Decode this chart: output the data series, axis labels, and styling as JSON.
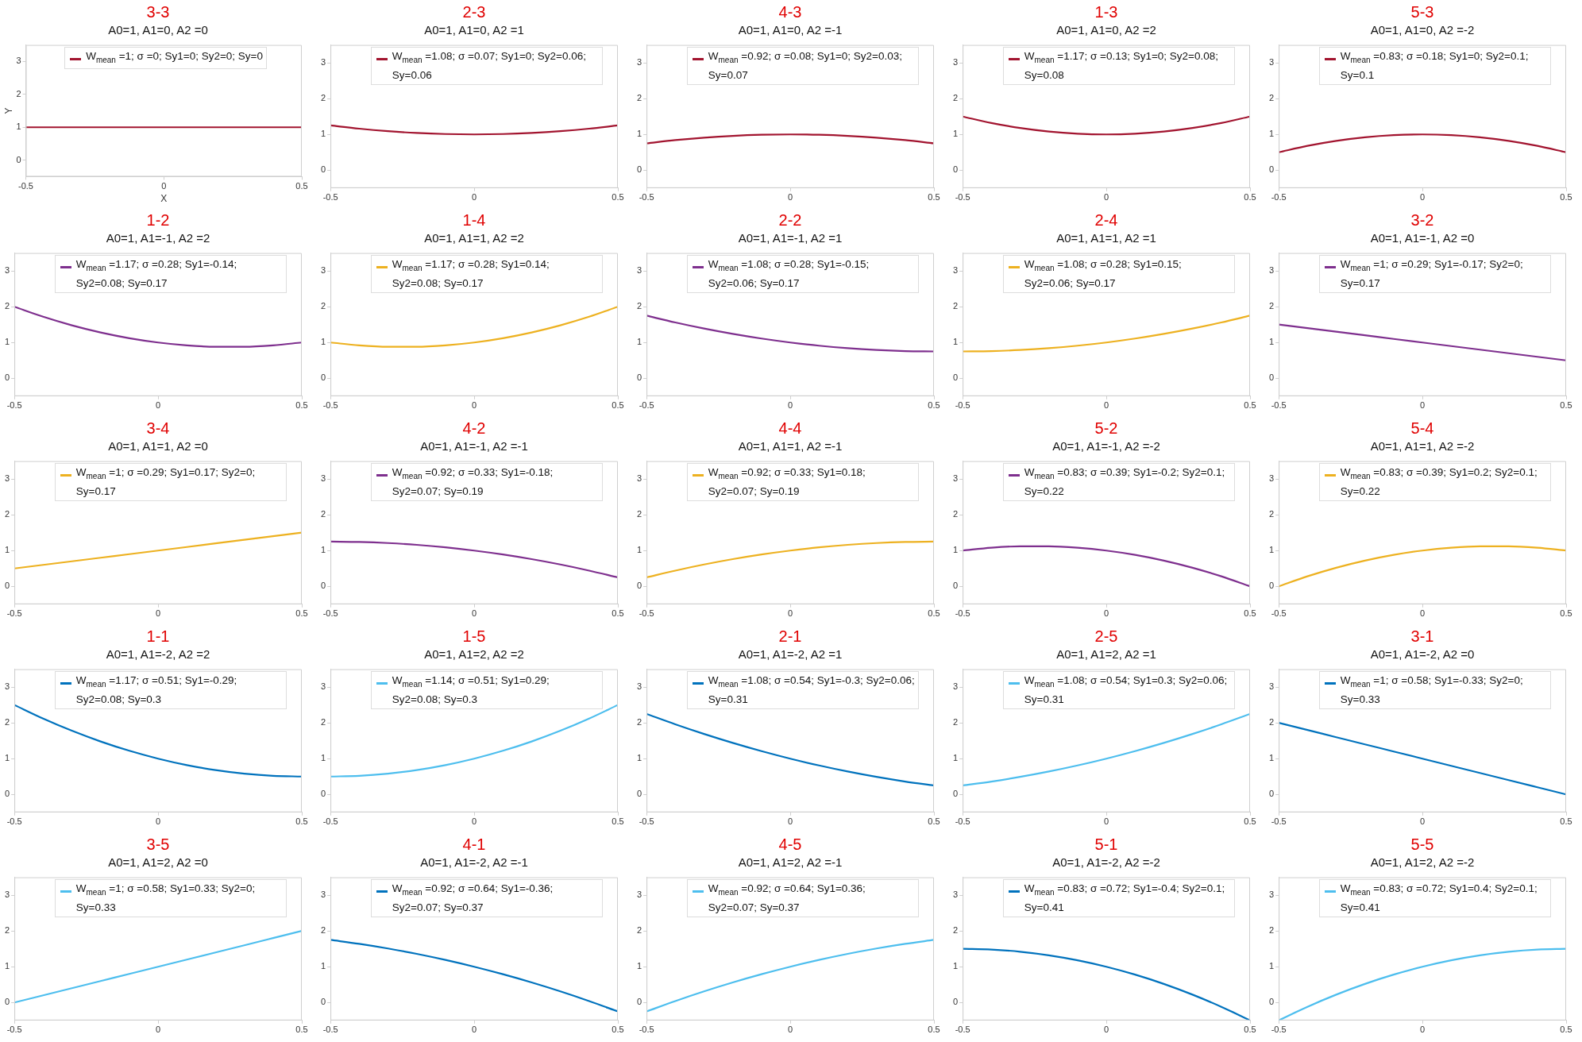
{
  "chart_data": [
    {
      "type": "line",
      "title": "3-3",
      "subtitle": "A0=1, A1=0, A2 =0",
      "xlabel": "X",
      "ylabel": "Y",
      "x": [
        -0.5,
        -0.4,
        -0.3,
        -0.2,
        -0.1,
        0,
        0.1,
        0.2,
        0.3,
        0.4,
        0.5
      ],
      "series": [
        {
          "name": "W$_{mean}$ =1; σ =0; Sy1=0; Sy2=0; Sy=0",
          "color": "#a2142f",
          "values": [
            1,
            1,
            1,
            1,
            1,
            1,
            1,
            1,
            1,
            1,
            1
          ]
        }
      ],
      "xlim": [
        -0.5,
        0.5
      ],
      "xticks": [
        -0.5,
        0,
        0.5
      ],
      "ylim": [
        -0.5,
        3.5
      ],
      "yticks": [
        0,
        1,
        2,
        3
      ],
      "legend": "top left",
      "grid": false
    },
    {
      "type": "line",
      "title": "2-3",
      "subtitle": "A0=1, A1=0, A2 =1",
      "x": [
        -0.5,
        -0.4,
        -0.3,
        -0.2,
        -0.1,
        0,
        0.1,
        0.2,
        0.3,
        0.4,
        0.5
      ],
      "series": [
        {
          "name": "W$_{mean}$ =1.08; σ =0.07; Sy1=0; Sy2=0.06; Sy=0.06",
          "color": "#a2142f",
          "values": [
            1.25,
            1.16,
            1.09,
            1.04,
            1.01,
            1,
            1.01,
            1.04,
            1.09,
            1.16,
            1.25
          ]
        }
      ],
      "xlim": [
        -0.5,
        0.5
      ],
      "xticks": [
        -0.5,
        0,
        0.5
      ],
      "ylim": [
        -0.5,
        3.5
      ],
      "yticks": [
        0,
        1,
        2,
        3
      ],
      "legend": "top left",
      "grid": false
    },
    {
      "type": "line",
      "title": "4-3",
      "subtitle": "A0=1, A1=0, A2 =-1",
      "x": [
        -0.5,
        -0.4,
        -0.3,
        -0.2,
        -0.1,
        0,
        0.1,
        0.2,
        0.3,
        0.4,
        0.5
      ],
      "series": [
        {
          "name": "W$_{mean}$ =0.92; σ =0.08; Sy1=0; Sy2=0.03; Sy=0.07",
          "color": "#a2142f",
          "values": [
            0.75,
            0.84,
            0.91,
            0.96,
            0.99,
            1,
            0.99,
            0.96,
            0.91,
            0.84,
            0.75
          ]
        }
      ],
      "xlim": [
        -0.5,
        0.5
      ],
      "xticks": [
        -0.5,
        0,
        0.5
      ],
      "ylim": [
        -0.5,
        3.5
      ],
      "yticks": [
        0,
        1,
        2,
        3
      ],
      "legend": "top left",
      "grid": false
    },
    {
      "type": "line",
      "title": "1-3",
      "subtitle": "A0=1, A1=0, A2 =2",
      "x": [
        -0.5,
        -0.4,
        -0.3,
        -0.2,
        -0.1,
        0,
        0.1,
        0.2,
        0.3,
        0.4,
        0.5
      ],
      "series": [
        {
          "name": "W$_{mean}$ =1.17; σ =0.13; Sy1=0; Sy2=0.08; Sy=0.08",
          "color": "#a2142f",
          "values": [
            1.5,
            1.32,
            1.18,
            1.08,
            1.02,
            1,
            1.02,
            1.08,
            1.18,
            1.32,
            1.5
          ]
        }
      ],
      "xlim": [
        -0.5,
        0.5
      ],
      "xticks": [
        -0.5,
        0,
        0.5
      ],
      "ylim": [
        -0.5,
        3.5
      ],
      "yticks": [
        0,
        1,
        2,
        3
      ],
      "legend": "top left",
      "grid": false
    },
    {
      "type": "line",
      "title": "5-3",
      "subtitle": "A0=1, A1=0, A2 =-2",
      "x": [
        -0.5,
        -0.4,
        -0.3,
        -0.2,
        -0.1,
        0,
        0.1,
        0.2,
        0.3,
        0.4,
        0.5
      ],
      "series": [
        {
          "name": "W$_{mean}$ =0.83; σ =0.18; Sy1=0; Sy2=0.1; Sy=0.1",
          "color": "#a2142f",
          "values": [
            0.5,
            0.68,
            0.82,
            0.92,
            0.98,
            1,
            0.98,
            0.92,
            0.82,
            0.68,
            0.5
          ]
        }
      ],
      "xlim": [
        -0.5,
        0.5
      ],
      "xticks": [
        -0.5,
        0,
        0.5
      ],
      "ylim": [
        -0.5,
        3.5
      ],
      "yticks": [
        0,
        1,
        2,
        3
      ],
      "legend": "top left",
      "grid": false
    },
    {
      "type": "line",
      "title": "1-2",
      "subtitle": "A0=1, A1=-1, A2 =2",
      "x": [
        -0.5,
        -0.4,
        -0.3,
        -0.2,
        -0.1,
        0,
        0.1,
        0.2,
        0.3,
        0.4,
        0.5
      ],
      "series": [
        {
          "name": "W$_{mean}$ =1.17; σ =0.28; Sy1=-0.14; Sy2=0.08; Sy=0.17",
          "color": "#7e2f8e",
          "values": [
            2,
            1.72,
            1.48,
            1.28,
            1.12,
            1,
            0.92,
            0.88,
            0.88,
            0.92,
            1
          ]
        }
      ],
      "xlim": [
        -0.5,
        0.5
      ],
      "xticks": [
        -0.5,
        0,
        0.5
      ],
      "ylim": [
        -0.5,
        3.5
      ],
      "yticks": [
        0,
        1,
        2,
        3
      ],
      "legend": "top left",
      "grid": false
    },
    {
      "type": "line",
      "title": "1-4",
      "subtitle": "A0=1, A1=1, A2 =2",
      "x": [
        -0.5,
        -0.4,
        -0.3,
        -0.2,
        -0.1,
        0,
        0.1,
        0.2,
        0.3,
        0.4,
        0.5
      ],
      "series": [
        {
          "name": "W$_{mean}$ =1.17; σ =0.28; Sy1=0.14; Sy2=0.08; Sy=0.17",
          "color": "#edb120",
          "values": [
            1,
            0.92,
            0.88,
            0.88,
            0.92,
            1,
            1.12,
            1.28,
            1.48,
            1.72,
            2
          ]
        }
      ],
      "xlim": [
        -0.5,
        0.5
      ],
      "xticks": [
        -0.5,
        0,
        0.5
      ],
      "ylim": [
        -0.5,
        3.5
      ],
      "yticks": [
        0,
        1,
        2,
        3
      ],
      "legend": "top left",
      "grid": false
    },
    {
      "type": "line",
      "title": "2-2",
      "subtitle": "A0=1, A1=-1, A2 =1",
      "x": [
        -0.5,
        -0.4,
        -0.3,
        -0.2,
        -0.1,
        0,
        0.1,
        0.2,
        0.3,
        0.4,
        0.5
      ],
      "series": [
        {
          "name": "W$_{mean}$ =1.08; σ =0.28; Sy1=-0.15; Sy2=0.06; Sy=0.17",
          "color": "#7e2f8e",
          "values": [
            1.75,
            1.56,
            1.39,
            1.24,
            1.11,
            1,
            0.91,
            0.84,
            0.79,
            0.76,
            0.75
          ]
        }
      ],
      "xlim": [
        -0.5,
        0.5
      ],
      "xticks": [
        -0.5,
        0,
        0.5
      ],
      "ylim": [
        -0.5,
        3.5
      ],
      "yticks": [
        0,
        1,
        2,
        3
      ],
      "legend": "top left",
      "grid": false
    },
    {
      "type": "line",
      "title": "2-4",
      "subtitle": "A0=1, A1=1, A2 =1",
      "x": [
        -0.5,
        -0.4,
        -0.3,
        -0.2,
        -0.1,
        0,
        0.1,
        0.2,
        0.3,
        0.4,
        0.5
      ],
      "series": [
        {
          "name": "W$_{mean}$ =1.08; σ =0.28; Sy1=0.15; Sy2=0.06; Sy=0.17",
          "color": "#edb120",
          "values": [
            0.75,
            0.76,
            0.79,
            0.84,
            0.91,
            1,
            1.11,
            1.24,
            1.39,
            1.56,
            1.75
          ]
        }
      ],
      "xlim": [
        -0.5,
        0.5
      ],
      "xticks": [
        -0.5,
        0,
        0.5
      ],
      "ylim": [
        -0.5,
        3.5
      ],
      "yticks": [
        0,
        1,
        2,
        3
      ],
      "legend": "top left",
      "grid": false
    },
    {
      "type": "line",
      "title": "3-2",
      "subtitle": "A0=1, A1=-1, A2 =0",
      "x": [
        -0.5,
        -0.4,
        -0.3,
        -0.2,
        -0.1,
        0,
        0.1,
        0.2,
        0.3,
        0.4,
        0.5
      ],
      "series": [
        {
          "name": "W$_{mean}$ =1; σ =0.29; Sy1=-0.17; Sy2=0; Sy=0.17",
          "color": "#7e2f8e",
          "values": [
            1.5,
            1.4,
            1.3,
            1.2,
            1.1,
            1,
            0.9,
            0.8,
            0.7,
            0.6,
            0.5
          ]
        }
      ],
      "xlim": [
        -0.5,
        0.5
      ],
      "xticks": [
        -0.5,
        0,
        0.5
      ],
      "ylim": [
        -0.5,
        3.5
      ],
      "yticks": [
        0,
        1,
        2,
        3
      ],
      "legend": "top left",
      "grid": false
    },
    {
      "type": "line",
      "title": "3-4",
      "subtitle": "A0=1, A1=1, A2 =0",
      "x": [
        -0.5,
        -0.4,
        -0.3,
        -0.2,
        -0.1,
        0,
        0.1,
        0.2,
        0.3,
        0.4,
        0.5
      ],
      "series": [
        {
          "name": "W$_{mean}$ =1; σ =0.29; Sy1=0.17; Sy2=0; Sy=0.17",
          "color": "#edb120",
          "values": [
            0.5,
            0.6,
            0.7,
            0.8,
            0.9,
            1,
            1.1,
            1.2,
            1.3,
            1.4,
            1.5
          ]
        }
      ],
      "xlim": [
        -0.5,
        0.5
      ],
      "xticks": [
        -0.5,
        0,
        0.5
      ],
      "ylim": [
        -0.5,
        3.5
      ],
      "yticks": [
        0,
        1,
        2,
        3
      ],
      "legend": "top left",
      "grid": false
    },
    {
      "type": "line",
      "title": "4-2",
      "subtitle": "A0=1, A1=-1, A2 =-1",
      "x": [
        -0.5,
        -0.4,
        -0.3,
        -0.2,
        -0.1,
        0,
        0.1,
        0.2,
        0.3,
        0.4,
        0.5
      ],
      "series": [
        {
          "name": "W$_{mean}$ =0.92; σ =0.33; Sy1=-0.18; Sy2=0.07; Sy=0.19",
          "color": "#7e2f8e",
          "values": [
            1.25,
            1.24,
            1.21,
            1.16,
            1.09,
            1,
            0.89,
            0.76,
            0.61,
            0.44,
            0.25
          ]
        }
      ],
      "xlim": [
        -0.5,
        0.5
      ],
      "xticks": [
        -0.5,
        0,
        0.5
      ],
      "ylim": [
        -0.5,
        3.5
      ],
      "yticks": [
        0,
        1,
        2,
        3
      ],
      "legend": "top left",
      "grid": false
    },
    {
      "type": "line",
      "title": "4-4",
      "subtitle": "A0=1, A1=1, A2 =-1",
      "x": [
        -0.5,
        -0.4,
        -0.3,
        -0.2,
        -0.1,
        0,
        0.1,
        0.2,
        0.3,
        0.4,
        0.5
      ],
      "series": [
        {
          "name": "W$_{mean}$ =0.92; σ =0.33; Sy1=0.18; Sy2=0.07; Sy=0.19",
          "color": "#edb120",
          "values": [
            0.25,
            0.44,
            0.61,
            0.76,
            0.89,
            1,
            1.09,
            1.16,
            1.21,
            1.24,
            1.25
          ]
        }
      ],
      "xlim": [
        -0.5,
        0.5
      ],
      "xticks": [
        -0.5,
        0,
        0.5
      ],
      "ylim": [
        -0.5,
        3.5
      ],
      "yticks": [
        0,
        1,
        2,
        3
      ],
      "legend": "top left",
      "grid": false
    },
    {
      "type": "line",
      "title": "5-2",
      "subtitle": "A0=1, A1=-1, A2 =-2",
      "x": [
        -0.5,
        -0.4,
        -0.3,
        -0.2,
        -0.1,
        0,
        0.1,
        0.2,
        0.3,
        0.4,
        0.5
      ],
      "series": [
        {
          "name": "W$_{mean}$ =0.83; σ =0.39; Sy1=-0.2; Sy2=0.1; Sy=0.22",
          "color": "#7e2f8e",
          "values": [
            1,
            1.08,
            1.12,
            1.12,
            1.08,
            1,
            0.88,
            0.72,
            0.52,
            0.28,
            0
          ]
        }
      ],
      "xlim": [
        -0.5,
        0.5
      ],
      "xticks": [
        -0.5,
        0,
        0.5
      ],
      "ylim": [
        -0.5,
        3.5
      ],
      "yticks": [
        0,
        1,
        2,
        3
      ],
      "legend": "top left",
      "grid": false
    },
    {
      "type": "line",
      "title": "5-4",
      "subtitle": "A0=1, A1=1, A2 =-2",
      "x": [
        -0.5,
        -0.4,
        -0.3,
        -0.2,
        -0.1,
        0,
        0.1,
        0.2,
        0.3,
        0.4,
        0.5
      ],
      "series": [
        {
          "name": "W$_{mean}$ =0.83; σ =0.39; Sy1=0.2; Sy2=0.1; Sy=0.22",
          "color": "#edb120",
          "values": [
            0,
            0.28,
            0.52,
            0.72,
            0.88,
            1,
            1.08,
            1.12,
            1.12,
            1.08,
            1
          ]
        }
      ],
      "xlim": [
        -0.5,
        0.5
      ],
      "xticks": [
        -0.5,
        0,
        0.5
      ],
      "ylim": [
        -0.5,
        3.5
      ],
      "yticks": [
        0,
        1,
        2,
        3
      ],
      "legend": "top left",
      "grid": false
    },
    {
      "type": "line",
      "title": "1-1",
      "subtitle": "A0=1, A1=-2, A2 =2",
      "x": [
        -0.5,
        -0.4,
        -0.3,
        -0.2,
        -0.1,
        0,
        0.1,
        0.2,
        0.3,
        0.4,
        0.5
      ],
      "series": [
        {
          "name": "W$_{mean}$ =1.17; σ =0.51; Sy1=-0.29; Sy2=0.08; Sy=0.3",
          "color": "#0072bd",
          "values": [
            2.5,
            2.12,
            1.78,
            1.48,
            1.22,
            1,
            0.82,
            0.68,
            0.58,
            0.52,
            0.5
          ]
        }
      ],
      "xlim": [
        -0.5,
        0.5
      ],
      "xticks": [
        -0.5,
        0,
        0.5
      ],
      "ylim": [
        -0.5,
        3.5
      ],
      "yticks": [
        0,
        1,
        2,
        3
      ],
      "legend": "top left",
      "grid": false
    },
    {
      "type": "line",
      "title": "1-5",
      "subtitle": "A0=1, A1=2, A2 =2",
      "x": [
        -0.5,
        -0.4,
        -0.3,
        -0.2,
        -0.1,
        0,
        0.1,
        0.2,
        0.3,
        0.4,
        0.5
      ],
      "series": [
        {
          "name": "W$_{mean}$ =1.14; σ =0.51; Sy1=0.29; Sy2=0.08; Sy=0.3",
          "color": "#4dbeee",
          "values": [
            0.5,
            0.52,
            0.58,
            0.68,
            0.82,
            1,
            1.22,
            1.48,
            1.78,
            2.12,
            2.5
          ]
        }
      ],
      "xlim": [
        -0.5,
        0.5
      ],
      "xticks": [
        -0.5,
        0,
        0.5
      ],
      "ylim": [
        -0.5,
        3.5
      ],
      "yticks": [
        0,
        1,
        2,
        3
      ],
      "legend": "top left",
      "grid": false
    },
    {
      "type": "line",
      "title": "2-1",
      "subtitle": "A0=1, A1=-2, A2 =1",
      "x": [
        -0.5,
        -0.4,
        -0.3,
        -0.2,
        -0.1,
        0,
        0.1,
        0.2,
        0.3,
        0.4,
        0.5
      ],
      "series": [
        {
          "name": "W$_{mean}$ =1.08; σ =0.54; Sy1=-0.3; Sy2=0.06; Sy=0.31",
          "color": "#0072bd",
          "values": [
            2.25,
            1.96,
            1.69,
            1.44,
            1.21,
            1,
            0.81,
            0.64,
            0.49,
            0.36,
            0.25
          ]
        }
      ],
      "xlim": [
        -0.5,
        0.5
      ],
      "xticks": [
        -0.5,
        0,
        0.5
      ],
      "ylim": [
        -0.5,
        3.5
      ],
      "yticks": [
        0,
        1,
        2,
        3
      ],
      "legend": "top left",
      "grid": false
    },
    {
      "type": "line",
      "title": "2-5",
      "subtitle": "A0=1, A1=2, A2 =1",
      "x": [
        -0.5,
        -0.4,
        -0.3,
        -0.2,
        -0.1,
        0,
        0.1,
        0.2,
        0.3,
        0.4,
        0.5
      ],
      "series": [
        {
          "name": "W$_{mean}$ =1.08; σ =0.54; Sy1=0.3; Sy2=0.06; Sy=0.31",
          "color": "#4dbeee",
          "values": [
            0.25,
            0.36,
            0.49,
            0.64,
            0.81,
            1,
            1.21,
            1.44,
            1.69,
            1.96,
            2.25
          ]
        }
      ],
      "xlim": [
        -0.5,
        0.5
      ],
      "xticks": [
        -0.5,
        0,
        0.5
      ],
      "ylim": [
        -0.5,
        3.5
      ],
      "yticks": [
        0,
        1,
        2,
        3
      ],
      "legend": "top left",
      "grid": false
    },
    {
      "type": "line",
      "title": "3-1",
      "subtitle": "A0=1, A1=-2, A2 =0",
      "x": [
        -0.5,
        -0.4,
        -0.3,
        -0.2,
        -0.1,
        0,
        0.1,
        0.2,
        0.3,
        0.4,
        0.5
      ],
      "series": [
        {
          "name": "W$_{mean}$ =1; σ =0.58; Sy1=-0.33; Sy2=0; Sy=0.33",
          "color": "#0072bd",
          "values": [
            2,
            1.8,
            1.6,
            1.4,
            1.2,
            1,
            0.8,
            0.6,
            0.4,
            0.2,
            0
          ]
        }
      ],
      "xlim": [
        -0.5,
        0.5
      ],
      "xticks": [
        -0.5,
        0,
        0.5
      ],
      "ylim": [
        -0.5,
        3.5
      ],
      "yticks": [
        0,
        1,
        2,
        3
      ],
      "legend": "top left",
      "grid": false
    },
    {
      "type": "line",
      "title": "3-5",
      "subtitle": "A0=1, A1=2, A2 =0",
      "x": [
        -0.5,
        -0.4,
        -0.3,
        -0.2,
        -0.1,
        0,
        0.1,
        0.2,
        0.3,
        0.4,
        0.5
      ],
      "series": [
        {
          "name": "W$_{mean}$ =1; σ =0.58; Sy1=0.33; Sy2=0; Sy=0.33",
          "color": "#4dbeee",
          "values": [
            0,
            0.2,
            0.4,
            0.6,
            0.8,
            1,
            1.2,
            1.4,
            1.6,
            1.8,
            2
          ]
        }
      ],
      "xlim": [
        -0.5,
        0.5
      ],
      "xticks": [
        -0.5,
        0,
        0.5
      ],
      "ylim": [
        -0.5,
        3.5
      ],
      "yticks": [
        0,
        1,
        2,
        3
      ],
      "legend": "top left",
      "grid": false
    },
    {
      "type": "line",
      "title": "4-1",
      "subtitle": "A0=1, A1=-2, A2 =-1",
      "x": [
        -0.5,
        -0.4,
        -0.3,
        -0.2,
        -0.1,
        0,
        0.1,
        0.2,
        0.3,
        0.4,
        0.5
      ],
      "series": [
        {
          "name": "W$_{mean}$ =0.92; σ =0.64; Sy1=-0.36; Sy2=0.07; Sy=0.37",
          "color": "#0072bd",
          "values": [
            1.75,
            1.64,
            1.51,
            1.36,
            1.19,
            1,
            0.79,
            0.56,
            0.31,
            0.04,
            -0.25
          ]
        }
      ],
      "xlim": [
        -0.5,
        0.5
      ],
      "xticks": [
        -0.5,
        0,
        0.5
      ],
      "ylim": [
        -0.5,
        3.5
      ],
      "yticks": [
        0,
        1,
        2,
        3
      ],
      "legend": "top left",
      "grid": false
    },
    {
      "type": "line",
      "title": "4-5",
      "subtitle": "A0=1, A1=2, A2 =-1",
      "x": [
        -0.5,
        -0.4,
        -0.3,
        -0.2,
        -0.1,
        0,
        0.1,
        0.2,
        0.3,
        0.4,
        0.5
      ],
      "series": [
        {
          "name": "W$_{mean}$ =0.92; σ =0.64; Sy1=0.36; Sy2=0.07; Sy=0.37",
          "color": "#4dbeee",
          "values": [
            -0.25,
            0.04,
            0.31,
            0.56,
            0.79,
            1,
            1.19,
            1.36,
            1.51,
            1.64,
            1.75
          ]
        }
      ],
      "xlim": [
        -0.5,
        0.5
      ],
      "xticks": [
        -0.5,
        0,
        0.5
      ],
      "ylim": [
        -0.5,
        3.5
      ],
      "yticks": [
        0,
        1,
        2,
        3
      ],
      "legend": "top left",
      "grid": false
    },
    {
      "type": "line",
      "title": "5-1",
      "subtitle": "A0=1, A1=-2, A2 =-2",
      "x": [
        -0.5,
        -0.4,
        -0.3,
        -0.2,
        -0.1,
        0,
        0.1,
        0.2,
        0.3,
        0.4,
        0.5
      ],
      "series": [
        {
          "name": "W$_{mean}$ =0.83; σ =0.72; Sy1=-0.4; Sy2=0.1; Sy=0.41",
          "color": "#0072bd",
          "values": [
            1.5,
            1.48,
            1.42,
            1.32,
            1.18,
            1,
            0.78,
            0.52,
            0.22,
            -0.12,
            -0.5
          ]
        }
      ],
      "xlim": [
        -0.5,
        0.5
      ],
      "xticks": [
        -0.5,
        0,
        0.5
      ],
      "ylim": [
        -0.5,
        3.5
      ],
      "yticks": [
        0,
        1,
        2,
        3
      ],
      "legend": "top left",
      "grid": false
    },
    {
      "type": "line",
      "title": "5-5",
      "subtitle": "A0=1, A1=2, A2 =-2",
      "x": [
        -0.5,
        -0.4,
        -0.3,
        -0.2,
        -0.1,
        0,
        0.1,
        0.2,
        0.3,
        0.4,
        0.5
      ],
      "series": [
        {
          "name": "W$_{mean}$ =0.83; σ =0.72; Sy1=0.4; Sy2=0.1; Sy=0.41",
          "color": "#4dbeee",
          "values": [
            -0.5,
            -0.12,
            0.22,
            0.52,
            0.78,
            1,
            1.18,
            1.32,
            1.42,
            1.48,
            1.5
          ]
        }
      ],
      "xlim": [
        -0.5,
        0.5
      ],
      "xticks": [
        -0.5,
        0,
        0.5
      ],
      "ylim": [
        -0.5,
        3.5
      ],
      "yticks": [
        0,
        1,
        2,
        3
      ],
      "legend": "top left",
      "grid": false
    }
  ]
}
